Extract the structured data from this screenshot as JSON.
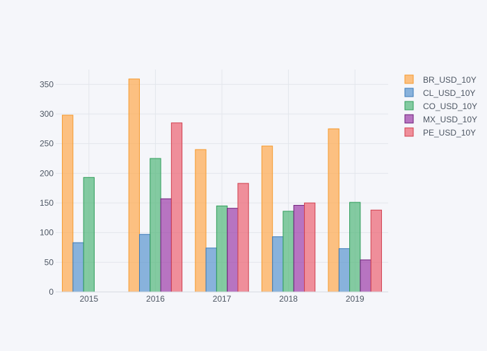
{
  "chart_data": {
    "type": "bar",
    "categories": [
      "2015",
      "2016",
      "2017",
      "2018",
      "2019"
    ],
    "series": [
      {
        "name": "BR_USD_10Y",
        "color": "#ffa94d",
        "stroke": "#f59a2e",
        "values": [
          298,
          359,
          240,
          246,
          275
        ]
      },
      {
        "name": "CL_USD_10Y",
        "color": "#5a96cf",
        "stroke": "#3b7ab8",
        "values": [
          83,
          97,
          74,
          93,
          73
        ]
      },
      {
        "name": "CO_USD_10Y",
        "color": "#52b87a",
        "stroke": "#2f9d5a",
        "values": [
          193,
          225,
          145,
          136,
          151
        ]
      },
      {
        "name": "MX_USD_10Y",
        "color": "#9c3da8",
        "stroke": "#6e1f7a",
        "values": [
          null,
          157,
          141,
          146,
          54
        ]
      },
      {
        "name": "PE_USD_10Y",
        "color": "#ec6370",
        "stroke": "#d0404f",
        "values": [
          null,
          285,
          183,
          150,
          138
        ]
      }
    ],
    "yticks": [
      "0",
      "50",
      "100",
      "150",
      "200",
      "250",
      "300",
      "350"
    ],
    "ylim": [
      0,
      375
    ],
    "legend": "top-right",
    "grid": true
  }
}
